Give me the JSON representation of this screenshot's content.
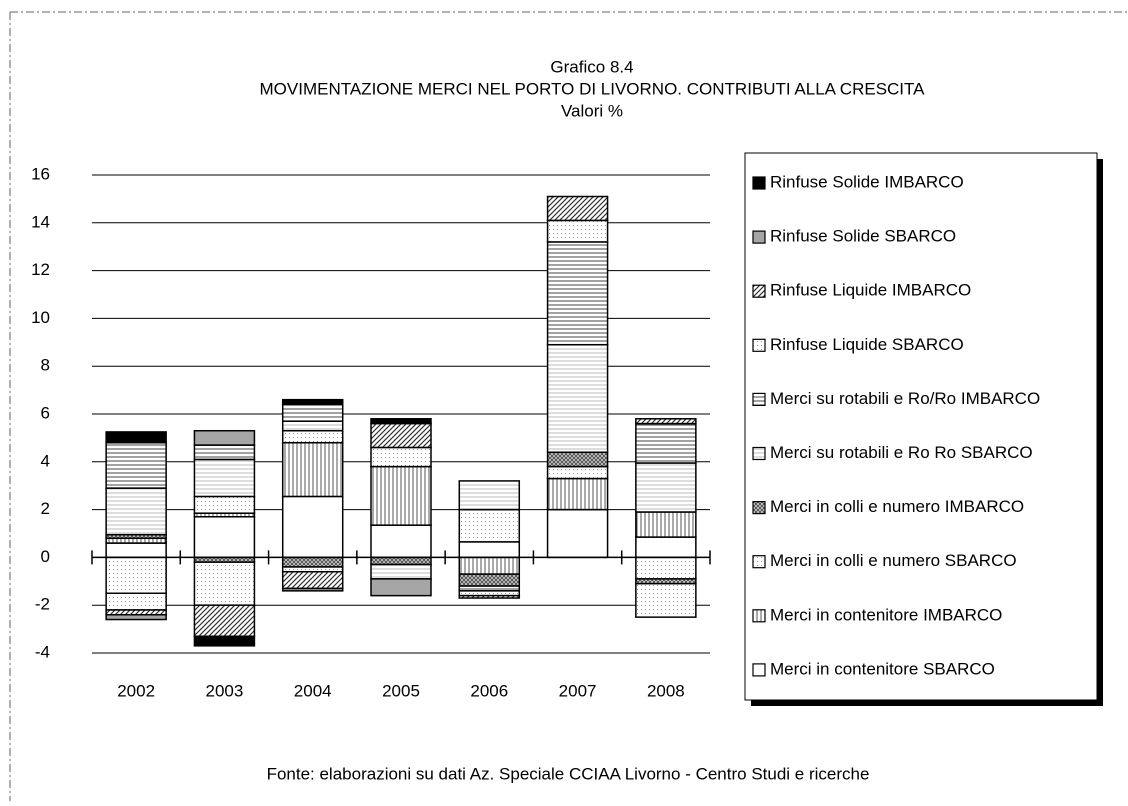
{
  "chart_data": {
    "type": "stacked_bar",
    "title": "Grafico 8.4",
    "subtitle": "MOVIMENTAZIONE MERCI NEL PORTO DI LIVORNO. CONTRIBUTI ALLA CRESCITA",
    "y_label": "Valori %",
    "source": "Fonte: elaborazioni su dati Az. Speciale CCIAA Livorno - Centro Studi e ricerche",
    "categories": [
      "2002",
      "2003",
      "2004",
      "2005",
      "2006",
      "2007",
      "2008"
    ],
    "ylim": [
      -4,
      16
    ],
    "yticks": [
      -4,
      -2,
      0,
      2,
      4,
      6,
      8,
      10,
      12,
      14,
      16
    ],
    "grid": true,
    "legend": "right",
    "series": [
      {
        "name": "Merci in contenitore SBARCO",
        "color": "#ffffff",
        "pattern": "none",
        "values": [
          0.6,
          1.7,
          2.55,
          1.35,
          0.65,
          2.0,
          0.85
        ]
      },
      {
        "name": "Merci in contenitore IMBARCO",
        "color": "#d9d9d9",
        "pattern": "vertical",
        "values": [
          0.2,
          0.15,
          2.25,
          2.45,
          -0.7,
          1.3,
          1.05
        ]
      },
      {
        "name": "Merci in colli e numero SBARCO",
        "color": "#eeeeee",
        "pattern": "dots",
        "values": [
          -1.5,
          0.7,
          0.5,
          0.8,
          1.35,
          0.5,
          -0.9
        ]
      },
      {
        "name": "Merci in colli e numero IMBARCO",
        "color": "#bfbfbf",
        "pattern": "cross",
        "values": [
          0.15,
          -0.2,
          -0.4,
          -0.3,
          -0.5,
          0.6,
          -0.2
        ]
      },
      {
        "name": "Merci su rotabili e Ro Ro SBARCO",
        "color": "#f2f2f2",
        "pattern": "horizontal-light",
        "values": [
          1.95,
          1.55,
          0.4,
          -0.6,
          1.2,
          4.5,
          2.05
        ]
      },
      {
        "name": "Merci su rotabili e Ro/Ro IMBARCO",
        "color": "#e0e0e0",
        "pattern": "horizontal",
        "values": [
          1.9,
          0.6,
          0.7,
          0,
          -0.2,
          4.3,
          1.65
        ]
      },
      {
        "name": "Rinfuse Liquide SBARCO",
        "color": "#ededed",
        "pattern": "dots",
        "values": [
          -0.7,
          -1.8,
          -0.2,
          0,
          -0.2,
          0.9,
          -1.4
        ]
      },
      {
        "name": "Rinfuse Liquide IMBARCO",
        "color": "#c8c8c8",
        "pattern": "diagonal",
        "values": [
          -0.2,
          -1.3,
          -0.7,
          1.0,
          -0.1,
          1.0,
          0.2
        ]
      },
      {
        "name": "Rinfuse Solide SBARCO",
        "color": "#a6a6a6",
        "pattern": "none",
        "values": [
          -0.2,
          0.6,
          -0.1,
          -0.7,
          0,
          0,
          0
        ]
      },
      {
        "name": "Rinfuse Solide IMBARCO",
        "color": "#000000",
        "pattern": "none",
        "values": [
          0.45,
          -0.4,
          0.2,
          0.2,
          0,
          0,
          0
        ]
      }
    ]
  }
}
